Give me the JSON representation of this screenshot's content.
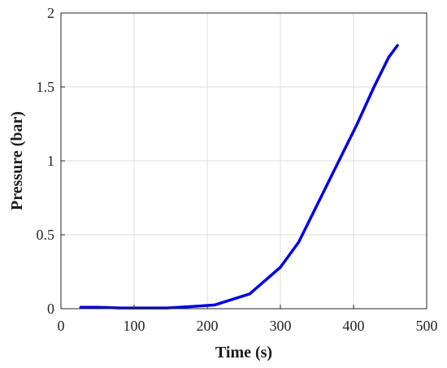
{
  "chart_data": {
    "type": "line",
    "xlabel": "Time (s)",
    "ylabel": "Pressure (bar)",
    "xlim": [
      0,
      500
    ],
    "ylim": [
      0,
      2
    ],
    "xticks": [
      0,
      100,
      200,
      300,
      400,
      500
    ],
    "xtick_labels": [
      "0",
      "100",
      "200",
      "300",
      "400",
      "500"
    ],
    "yticks": [
      0,
      0.5,
      1,
      1.5,
      2
    ],
    "ytick_labels": [
      "0",
      "0.5",
      "1",
      "1.5",
      "2"
    ],
    "grid": true,
    "series": [
      {
        "color": "#0000e6",
        "x": [
          27,
          50,
          80,
          110,
          145,
          180,
          210,
          258,
          300,
          325,
          355,
          380,
          405,
          428,
          448,
          460
        ],
        "y": [
          0.01,
          0.01,
          0.005,
          0.005,
          0.005,
          0.015,
          0.025,
          0.1,
          0.28,
          0.45,
          0.75,
          1.0,
          1.25,
          1.5,
          1.7,
          1.78
        ]
      }
    ]
  }
}
